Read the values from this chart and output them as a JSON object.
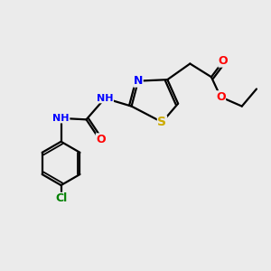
{
  "bg_color": "#ebebeb",
  "bond_color": "black",
  "bond_lw": 1.6,
  "atom_colors": {
    "N": "#0000ff",
    "O": "#ff0000",
    "S": "#ccaa00",
    "Cl": "#008000",
    "C": "black",
    "H": "#5a9090"
  },
  "font_size": 9
}
